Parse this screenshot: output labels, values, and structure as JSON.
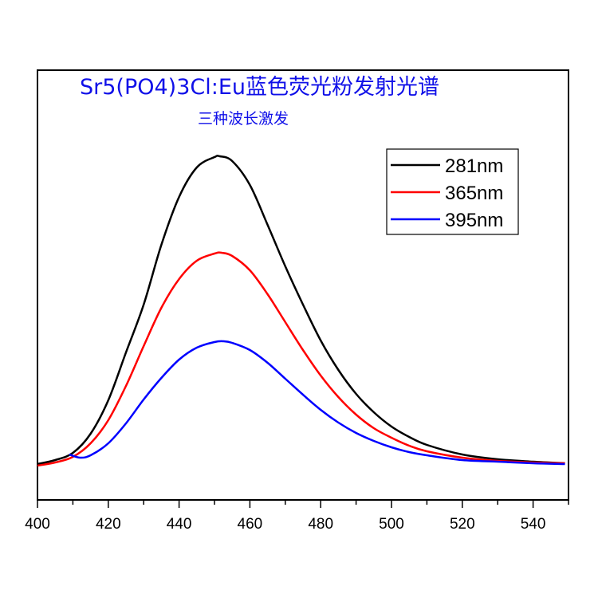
{
  "chart_data": {
    "type": "line",
    "title": "Sr5(PO4)3Cl:Eu蓝色荧光粉发射光谱",
    "subtitle": "三种波长激发",
    "xlabel": "",
    "ylabel": "",
    "xlim": [
      400,
      550
    ],
    "ylim": [
      -45,
      440
    ],
    "x_ticks": [
      400,
      420,
      440,
      460,
      480,
      500,
      520,
      540
    ],
    "x_tick_labels": [
      "400",
      "420",
      "440",
      "460",
      "480",
      "500",
      "520",
      "540"
    ],
    "y_tick_labels": [],
    "grid": false,
    "legend_position": "top-right",
    "series": [
      {
        "name": "281nm",
        "color": "#000000",
        "x": [
          400,
          405,
          410,
          415,
          420,
          425,
          430,
          435,
          440,
          445,
          450,
          451.5,
          455,
          460,
          465,
          470,
          475,
          480,
          485,
          490,
          495,
          500,
          505,
          510,
          520,
          530,
          540,
          549
        ],
        "y": [
          0,
          5,
          14,
          38,
          80,
          140,
          200,
          275,
          335,
          372,
          385,
          386,
          380,
          350,
          300,
          248,
          200,
          155,
          118,
          88,
          65,
          47,
          34,
          24,
          12,
          6,
          3,
          1
        ]
      },
      {
        "name": "365nm",
        "color": "#ff0000",
        "x": [
          400,
          405,
          410,
          415,
          420,
          425,
          430,
          435,
          440,
          445,
          450,
          452,
          455,
          460,
          465,
          470,
          475,
          480,
          485,
          490,
          495,
          500,
          505,
          510,
          520,
          530,
          540,
          549
        ],
        "y": [
          -2,
          2,
          9,
          26,
          55,
          98,
          148,
          196,
          232,
          255,
          264,
          265,
          261,
          243,
          213,
          178,
          143,
          111,
          84,
          62,
          45,
          33,
          23,
          16,
          8,
          4,
          2,
          1
        ]
      },
      {
        "name": "395nm",
        "color": "#0000ff",
        "x": [
          409,
          412,
          415,
          420,
          425,
          430,
          435,
          440,
          445,
          450,
          452.5,
          455,
          460,
          465,
          470,
          475,
          480,
          485,
          490,
          495,
          500,
          505,
          510,
          520,
          530,
          540,
          549
        ],
        "y": [
          12,
          8,
          11,
          26,
          51,
          81,
          108,
          131,
          146,
          153,
          154,
          152,
          143,
          127,
          107,
          87,
          68,
          52,
          39,
          29,
          21,
          15,
          11,
          5,
          3,
          1,
          0
        ]
      }
    ]
  }
}
